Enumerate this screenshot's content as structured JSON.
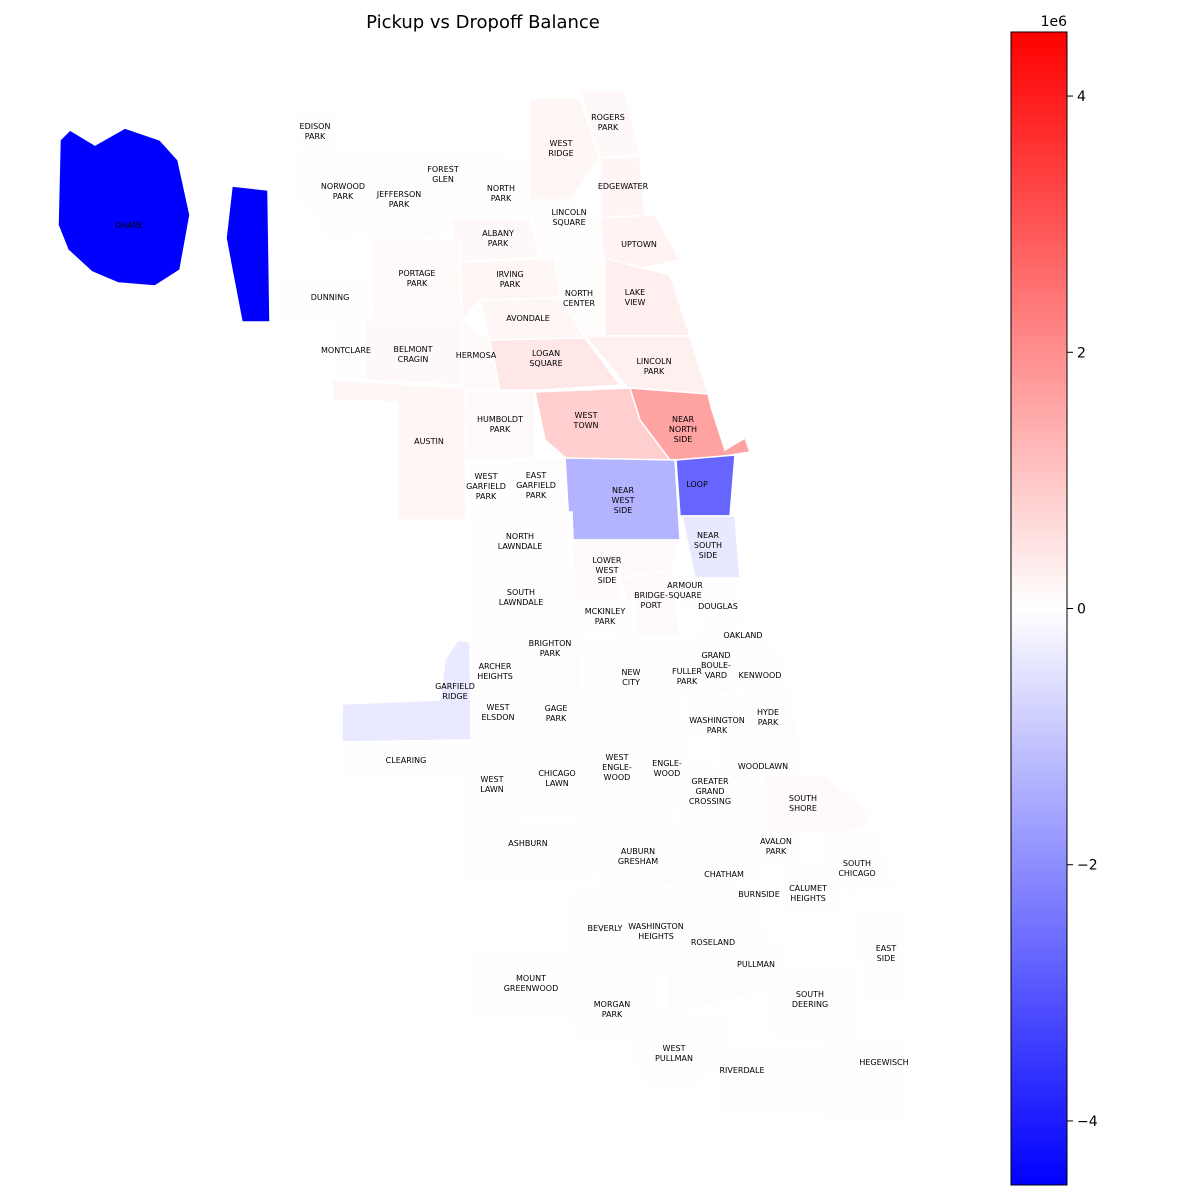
{
  "title": "Pickup vs Dropoff Balance",
  "colorbar": {
    "colormap": "bwr",
    "min": -4500000,
    "max": 4500000,
    "scale_label": "1e6",
    "ticks": [
      {
        "value": 4,
        "label": "4"
      },
      {
        "value": 2,
        "label": "2"
      },
      {
        "value": 0,
        "label": "0"
      },
      {
        "value": -2,
        "label": "−2"
      },
      {
        "value": -4,
        "label": "−4"
      }
    ]
  },
  "areas": [
    {
      "id": "ohare",
      "label": [
        "OHARE"
      ],
      "value": -4500000
    },
    {
      "id": "edison-park",
      "label": [
        "EDISON",
        "PARK"
      ],
      "value": 20000
    },
    {
      "id": "norwood-park",
      "label": [
        "NORWOOD",
        "PARK"
      ],
      "value": 30000
    },
    {
      "id": "jefferson-park",
      "label": [
        "JEFFERSON",
        "PARK"
      ],
      "value": 60000
    },
    {
      "id": "forest-glen",
      "label": [
        "FOREST",
        "GLEN"
      ],
      "value": 10000
    },
    {
      "id": "north-park",
      "label": [
        "NORTH",
        "PARK"
      ],
      "value": 20000
    },
    {
      "id": "west-ridge",
      "label": [
        "WEST",
        "RIDGE"
      ],
      "value": 160000
    },
    {
      "id": "rogers-park",
      "label": [
        "ROGERS",
        "PARK"
      ],
      "value": 120000
    },
    {
      "id": "edgewater",
      "label": [
        "EDGEWATER"
      ],
      "value": 180000
    },
    {
      "id": "lincoln-square",
      "label": [
        "LINCOLN",
        "SQUARE"
      ],
      "value": 60000
    },
    {
      "id": "albany-park",
      "label": [
        "ALBANY",
        "PARK"
      ],
      "value": 120000
    },
    {
      "id": "uptown",
      "label": [
        "UPTOWN"
      ],
      "value": 220000
    },
    {
      "id": "dunning",
      "label": [
        "DUNNING"
      ],
      "value": 40000
    },
    {
      "id": "portage-park",
      "label": [
        "PORTAGE",
        "PARK"
      ],
      "value": 100000
    },
    {
      "id": "irving-park",
      "label": [
        "IRVING",
        "PARK"
      ],
      "value": 150000
    },
    {
      "id": "north-center",
      "label": [
        "NORTH",
        "CENTER"
      ],
      "value": 60000
    },
    {
      "id": "lake-view",
      "label": [
        "LAKE",
        "VIEW"
      ],
      "value": 280000
    },
    {
      "id": "avondale",
      "label": [
        "AVONDALE"
      ],
      "value": 160000
    },
    {
      "id": "montclare",
      "label": [
        "MONTCLARE"
      ],
      "value": 20000
    },
    {
      "id": "belmont-cragin",
      "label": [
        "BELMONT",
        "CRAGIN"
      ],
      "value": 120000
    },
    {
      "id": "hermosa",
      "label": [
        "HERMOSA"
      ],
      "value": 80000
    },
    {
      "id": "logan-square",
      "label": [
        "LOGAN",
        "SQUARE"
      ],
      "value": 420000
    },
    {
      "id": "lincoln-park",
      "label": [
        "LINCOLN",
        "PARK"
      ],
      "value": 260000
    },
    {
      "id": "austin",
      "label": [
        "AUSTIN"
      ],
      "value": 160000
    },
    {
      "id": "humboldt-park",
      "label": [
        "HUMBOLDT",
        "PARK"
      ],
      "value": 80000
    },
    {
      "id": "west-town",
      "label": [
        "WEST",
        "TOWN"
      ],
      "value": 850000
    },
    {
      "id": "near-north-side",
      "label": [
        "NEAR",
        "NORTH",
        "SIDE"
      ],
      "value": 1650000
    },
    {
      "id": "west-garfield-park",
      "label": [
        "WEST",
        "GARFIELD",
        "PARK"
      ],
      "value": 20000
    },
    {
      "id": "east-garfield-park",
      "label": [
        "EAST",
        "GARFIELD",
        "PARK"
      ],
      "value": 50000
    },
    {
      "id": "near-west-side",
      "label": [
        "NEAR",
        "WEST",
        "SIDE"
      ],
      "value": -1350000
    },
    {
      "id": "loop",
      "label": [
        "LOOP"
      ],
      "value": -2700000
    },
    {
      "id": "north-lawndale",
      "label": [
        "NORTH",
        "LAWNDALE"
      ],
      "value": 10000
    },
    {
      "id": "near-south-side",
      "label": [
        "NEAR",
        "SOUTH",
        "SIDE"
      ],
      "value": -400000
    },
    {
      "id": "lower-west-side",
      "label": [
        "LOWER",
        "WEST",
        "SIDE"
      ],
      "value": 100000
    },
    {
      "id": "south-lawndale",
      "label": [
        "SOUTH",
        "LAWNDALE"
      ],
      "value": 40000
    },
    {
      "id": "bridgeport",
      "label": [
        "BRIDGE-",
        "PORT"
      ],
      "value": 80000
    },
    {
      "id": "armour-square",
      "label": [
        "ARMOUR",
        "SQUARE"
      ],
      "value": 40000
    },
    {
      "id": "douglas",
      "label": [
        "DOUGLAS"
      ],
      "value": 30000
    },
    {
      "id": "mckinley-park",
      "label": [
        "MCKINLEY",
        "PARK"
      ],
      "value": 20000
    },
    {
      "id": "oakland",
      "label": [
        "OAKLAND"
      ],
      "value": 10000
    },
    {
      "id": "brighton-park",
      "label": [
        "BRIGHTON",
        "PARK"
      ],
      "value": 60000
    },
    {
      "id": "archer-heights",
      "label": [
        "ARCHER",
        "HEIGHTS"
      ],
      "value": 30000
    },
    {
      "id": "new-city",
      "label": [
        "NEW",
        "CITY"
      ],
      "value": 20000
    },
    {
      "id": "fuller-park",
      "label": [
        "FULLER",
        "PARK"
      ],
      "value": 10000
    },
    {
      "id": "grand-boulevard",
      "label": [
        "GRAND",
        "BOULE-",
        "VARD"
      ],
      "value": 50000
    },
    {
      "id": "kenwood",
      "label": [
        "KENWOOD"
      ],
      "value": 10000
    },
    {
      "id": "garfield-ridge",
      "label": [
        "GARFIELD",
        "RIDGE"
      ],
      "value": -380000
    },
    {
      "id": "west-elsdon",
      "label": [
        "WEST",
        "ELSDON"
      ],
      "value": 10000
    },
    {
      "id": "gage-park",
      "label": [
        "GAGE",
        "PARK"
      ],
      "value": 40000
    },
    {
      "id": "hyde-park",
      "label": [
        "HYDE",
        "PARK"
      ],
      "value": -40000
    },
    {
      "id": "washington-park",
      "label": [
        "WASHINGTON",
        "PARK"
      ],
      "value": 20000
    },
    {
      "id": "clearing",
      "label": [
        "CLEARING"
      ],
      "value": 10000
    },
    {
      "id": "west-lawn",
      "label": [
        "WEST",
        "LAWN"
      ],
      "value": 30000
    },
    {
      "id": "chicago-lawn",
      "label": [
        "CHICAGO",
        "LAWN"
      ],
      "value": 60000
    },
    {
      "id": "west-englewood",
      "label": [
        "WEST",
        "ENGLE-",
        "WOOD"
      ],
      "value": 20000
    },
    {
      "id": "englewood",
      "label": [
        "ENGLE-",
        "WOOD"
      ],
      "value": 20000
    },
    {
      "id": "woodlawn",
      "label": [
        "WOODLAWN"
      ],
      "value": 20000
    },
    {
      "id": "greater-grand-crossing",
      "label": [
        "GREATER",
        "GRAND",
        "CROSSING"
      ],
      "value": 40000
    },
    {
      "id": "south-shore",
      "label": [
        "SOUTH",
        "SHORE"
      ],
      "value": 100000
    },
    {
      "id": "ashburn",
      "label": [
        "ASHBURN"
      ],
      "value": 20000
    },
    {
      "id": "auburn-gresham",
      "label": [
        "AUBURN",
        "GRESHAM"
      ],
      "value": 60000
    },
    {
      "id": "avalon-park",
      "label": [
        "AVALON",
        "PARK"
      ],
      "value": 10000
    },
    {
      "id": "south-chicago",
      "label": [
        "SOUTH",
        "CHICAGO"
      ],
      "value": 10000
    },
    {
      "id": "chatham",
      "label": [
        "CHATHAM"
      ],
      "value": 40000
    },
    {
      "id": "burnside",
      "label": [
        "BURNSIDE"
      ],
      "value": 0
    },
    {
      "id": "calumet-heights",
      "label": [
        "CALUMET",
        "HEIGHTS"
      ],
      "value": 10000
    },
    {
      "id": "beverly",
      "label": [
        "BEVERLY"
      ],
      "value": 10000
    },
    {
      "id": "washington-heights",
      "label": [
        "WASHINGTON",
        "HEIGHTS"
      ],
      "value": 30000
    },
    {
      "id": "roseland",
      "label": [
        "ROSELAND"
      ],
      "value": 60000
    },
    {
      "id": "east-side",
      "label": [
        "EAST",
        "SIDE"
      ],
      "value": 10000
    },
    {
      "id": "pullman",
      "label": [
        "PULLMAN"
      ],
      "value": -20000
    },
    {
      "id": "mount-greenwood",
      "label": [
        "MOUNT",
        "GREENWOOD"
      ],
      "value": 10000
    },
    {
      "id": "south-deering",
      "label": [
        "SOUTH",
        "DEERING"
      ],
      "value": 10000
    },
    {
      "id": "morgan-park",
      "label": [
        "MORGAN",
        "PARK"
      ],
      "value": 20000
    },
    {
      "id": "west-pullman",
      "label": [
        "WEST",
        "PULLMAN"
      ],
      "value": 40000
    },
    {
      "id": "hegewisch",
      "label": [
        "HEGEWISCH"
      ],
      "value": 10000
    },
    {
      "id": "riverdale",
      "label": [
        "RIVERDALE"
      ],
      "value": 10000
    }
  ]
}
